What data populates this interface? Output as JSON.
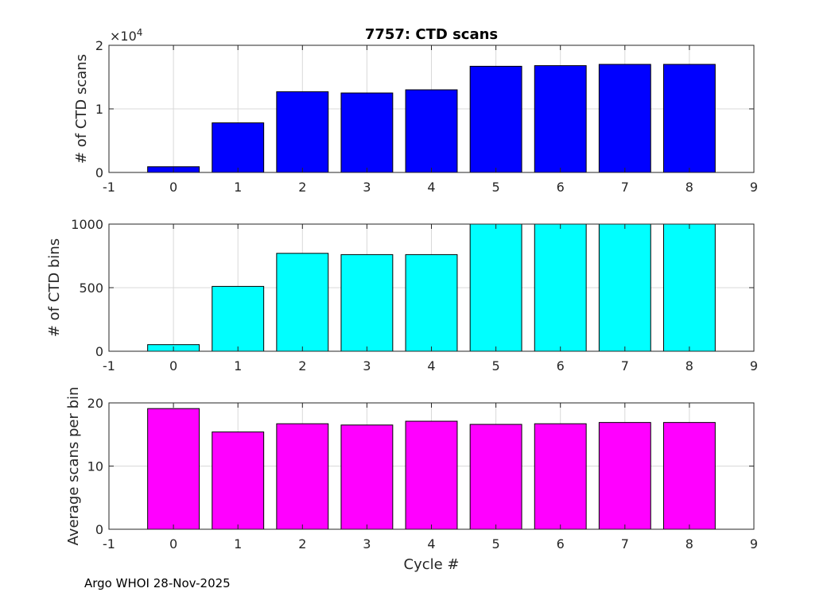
{
  "chart_data": [
    {
      "type": "bar",
      "title": "7757: CTD scans",
      "ylabel": "# of CTD scans",
      "xlabel": "",
      "exponent_label": "×10",
      "exponent_power": "4",
      "color": "#0000ff",
      "xlim": [
        -1,
        9
      ],
      "ylim": [
        0,
        20000
      ],
      "x_ticks": [
        "-1",
        "0",
        "1",
        "2",
        "3",
        "4",
        "5",
        "6",
        "7",
        "8",
        "9"
      ],
      "y_ticks": [
        {
          "value": 0,
          "label": "0"
        },
        {
          "value": 10000,
          "label": "1"
        },
        {
          "value": 20000,
          "label": "2"
        }
      ],
      "categories": [
        0,
        1,
        2,
        3,
        4,
        5,
        6,
        7,
        8
      ],
      "values": [
        900,
        7800,
        12700,
        12500,
        13000,
        16700,
        16800,
        17000,
        17000
      ],
      "grid": true
    },
    {
      "type": "bar",
      "title": "",
      "ylabel": "# of CTD bins",
      "xlabel": "",
      "color": "#00ffff",
      "xlim": [
        -1,
        9
      ],
      "ylim": [
        0,
        1000
      ],
      "x_ticks": [
        "-1",
        "0",
        "1",
        "2",
        "3",
        "4",
        "5",
        "6",
        "7",
        "8",
        "9"
      ],
      "y_ticks": [
        {
          "value": 0,
          "label": "0"
        },
        {
          "value": 500,
          "label": "500"
        },
        {
          "value": 1000,
          "label": "1000"
        }
      ],
      "categories": [
        0,
        1,
        2,
        3,
        4,
        5,
        6,
        7,
        8
      ],
      "values": [
        52,
        510,
        770,
        760,
        760,
        1000,
        1000,
        1000,
        1000
      ],
      "grid": true
    },
    {
      "type": "bar",
      "title": "",
      "ylabel": "Average scans per bin",
      "xlabel": "Cycle #",
      "color": "#ff00ff",
      "xlim": [
        -1,
        9
      ],
      "ylim": [
        0,
        20
      ],
      "x_ticks": [
        "-1",
        "0",
        "1",
        "2",
        "3",
        "4",
        "5",
        "6",
        "7",
        "8",
        "9"
      ],
      "y_ticks": [
        {
          "value": 0,
          "label": "0"
        },
        {
          "value": 10,
          "label": "10"
        },
        {
          "value": 20,
          "label": "20"
        }
      ],
      "categories": [
        0,
        1,
        2,
        3,
        4,
        5,
        6,
        7,
        8
      ],
      "values": [
        19.1,
        15.4,
        16.7,
        16.5,
        17.1,
        16.6,
        16.7,
        16.9,
        16.9
      ],
      "grid": true
    }
  ],
  "footer": {
    "text": "Argo WHOI 28-Nov-2025"
  }
}
